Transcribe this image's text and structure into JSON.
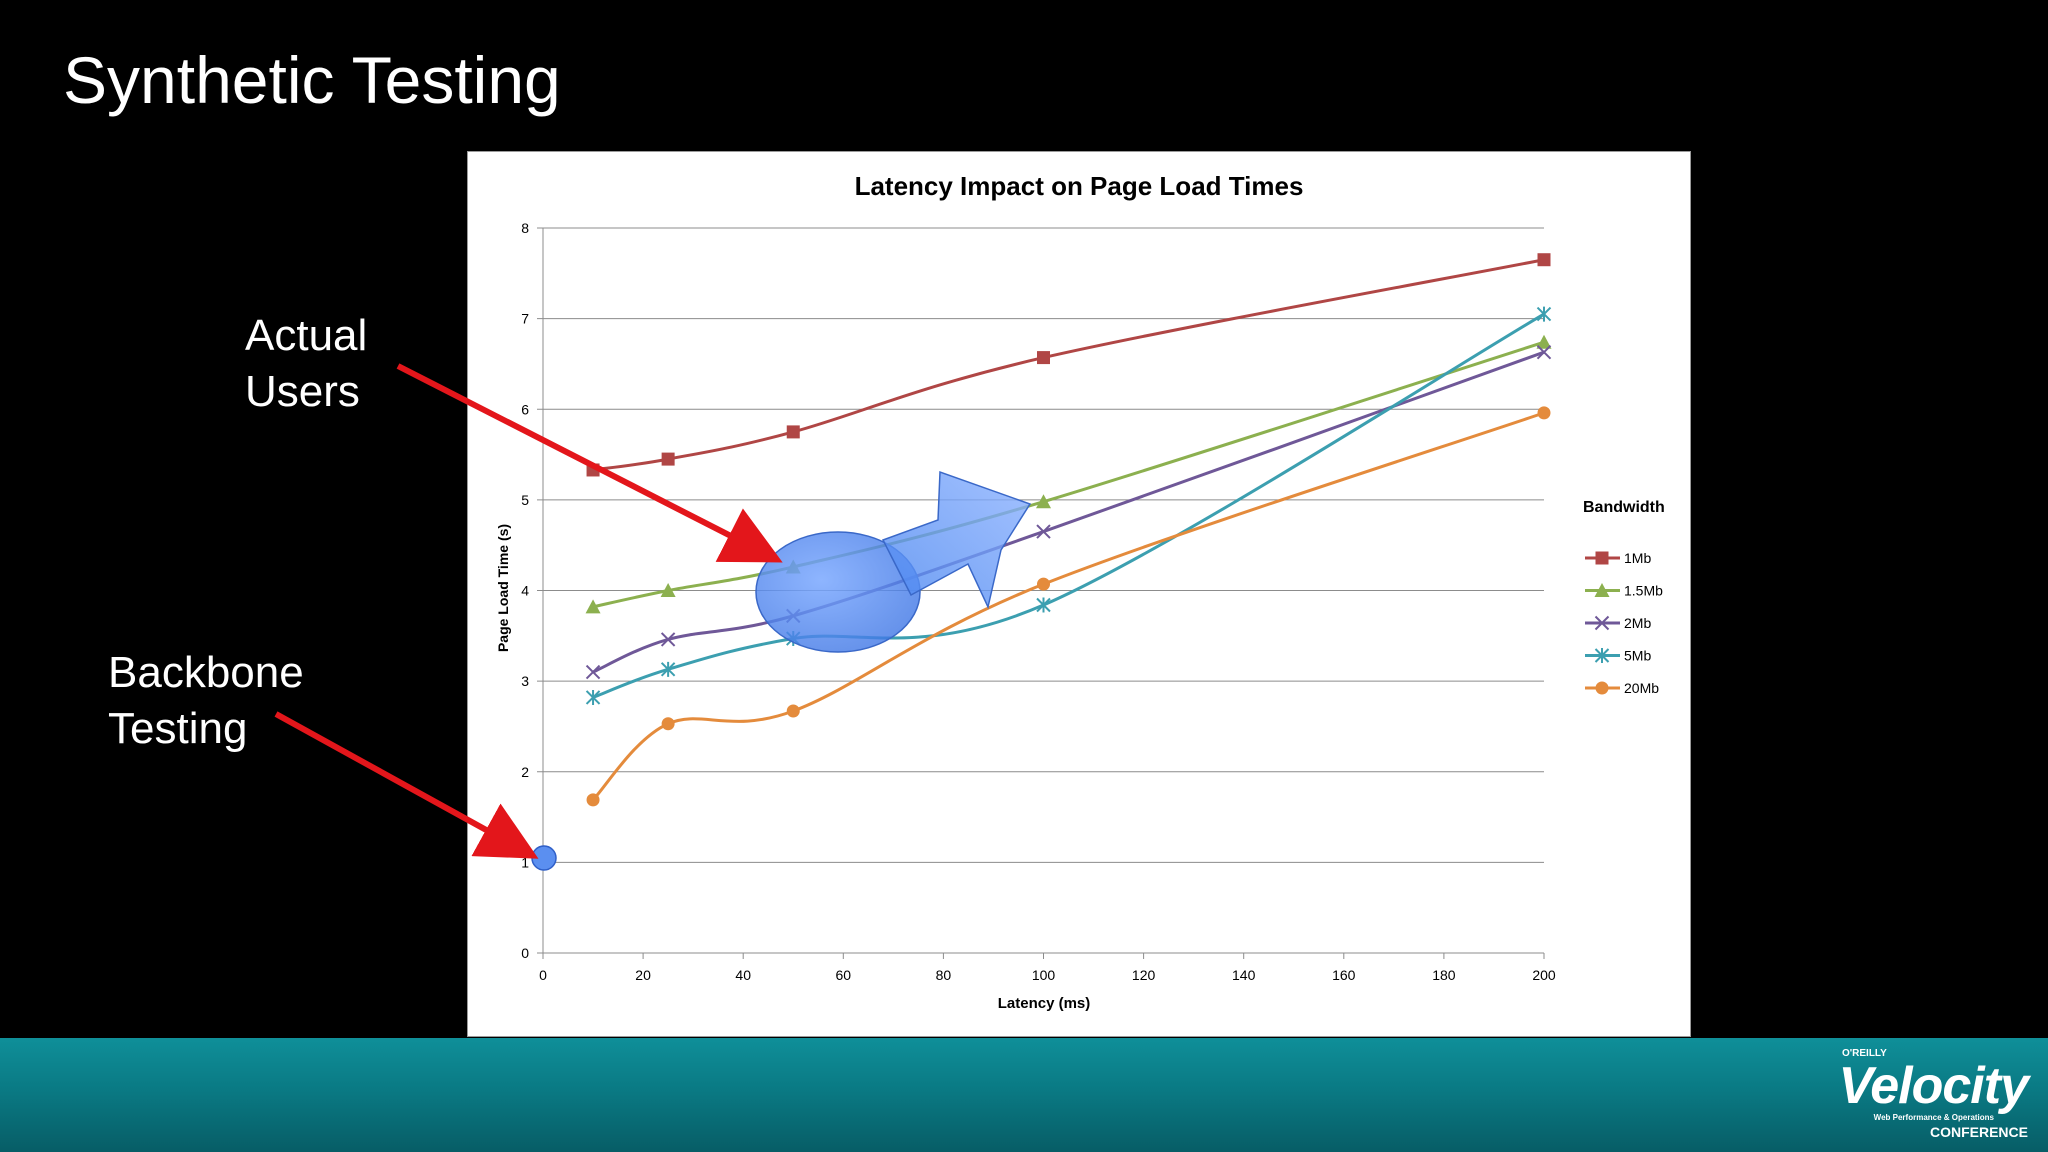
{
  "slide": {
    "title": "Synthetic Testing",
    "callouts": {
      "actual_users": [
        "Actual",
        "Users"
      ],
      "backbone_testing": [
        "Backbone",
        "Testing"
      ]
    }
  },
  "logo": {
    "publisher": "O'REILLY",
    "wordmark": "Velocity",
    "tagline": "Web Performance & Operations",
    "conference": "CONFERENCE"
  },
  "colors": {
    "background": "#000000",
    "footer": "#0a7f89",
    "arrow": "#e3161b",
    "highlight": "#5b8ff0"
  },
  "chart_data": {
    "type": "line",
    "title": "Latency Impact on Page Load Times",
    "xlabel": "Latency (ms)",
    "ylabel": "Page Load Time (s)",
    "xlim": [
      0,
      200
    ],
    "ylim": [
      0,
      8
    ],
    "xticks": [
      0,
      20,
      40,
      60,
      80,
      100,
      120,
      140,
      160,
      180,
      200
    ],
    "yticks": [
      0,
      1,
      2,
      3,
      4,
      5,
      6,
      7,
      8
    ],
    "grid": "horizontal",
    "legend_title": "Bandwidth",
    "legend_position": "right",
    "x": [
      10,
      25,
      50,
      100,
      200
    ],
    "series": [
      {
        "name": "1Mb",
        "color": "#b04645",
        "marker": "square",
        "values": [
          5.33,
          5.45,
          5.75,
          6.57,
          7.65
        ]
      },
      {
        "name": "1.5Mb",
        "color": "#8cb04f",
        "marker": "triangle",
        "values": [
          3.82,
          4.0,
          4.26,
          4.98,
          6.74
        ]
      },
      {
        "name": "2Mb",
        "color": "#6f5898",
        "marker": "x",
        "values": [
          3.1,
          3.46,
          3.72,
          4.65,
          6.63
        ]
      },
      {
        "name": "5Mb",
        "color": "#3c9fb0",
        "marker": "star",
        "values": [
          2.82,
          3.13,
          3.47,
          3.84,
          7.05
        ]
      },
      {
        "name": "20Mb",
        "color": "#e48b3c",
        "marker": "circle",
        "values": [
          1.69,
          2.53,
          2.67,
          4.07,
          5.96
        ]
      }
    ]
  }
}
